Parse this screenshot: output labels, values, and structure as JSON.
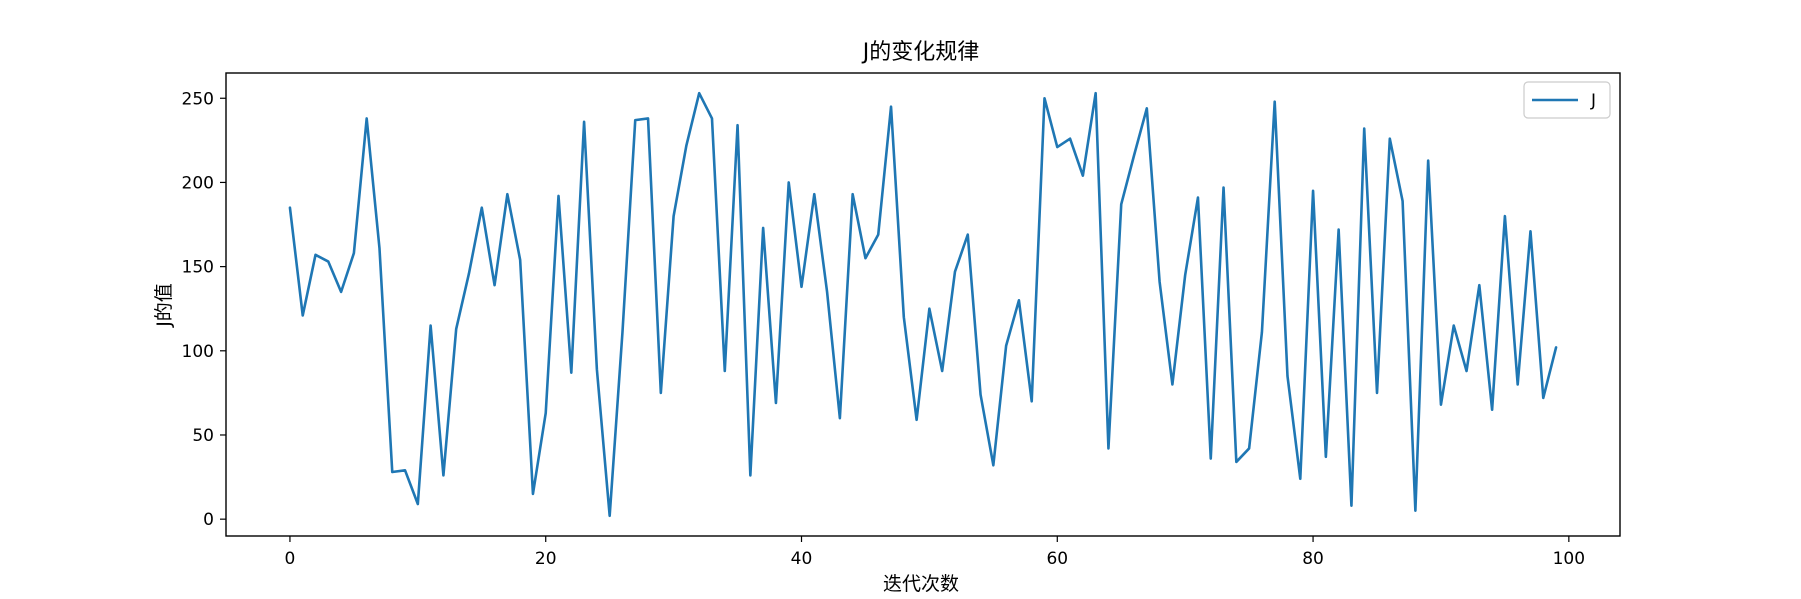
{
  "chart_data": {
    "type": "line",
    "title": "J的变化规律",
    "xlabel": "迭代次数",
    "ylabel": "J的值",
    "xlim": [
      -5,
      104
    ],
    "ylim": [
      -10,
      265
    ],
    "xticks": [
      0,
      20,
      40,
      60,
      80,
      100
    ],
    "yticks": [
      0,
      50,
      100,
      150,
      200,
      250
    ],
    "grid": false,
    "legend_position": "top-right",
    "series": [
      {
        "name": "J",
        "color": "#1f77b4",
        "x": [
          0,
          1,
          2,
          3,
          4,
          5,
          6,
          7,
          8,
          9,
          10,
          11,
          12,
          13,
          14,
          15,
          16,
          17,
          18,
          19,
          20,
          21,
          22,
          23,
          24,
          25,
          26,
          27,
          28,
          29,
          30,
          31,
          32,
          33,
          34,
          35,
          36,
          37,
          38,
          39,
          40,
          41,
          42,
          43,
          44,
          45,
          46,
          47,
          48,
          49,
          50,
          51,
          52,
          53,
          54,
          55,
          56,
          57,
          58,
          59,
          60,
          61,
          62,
          63,
          64,
          65,
          66,
          67,
          68,
          69,
          70,
          71,
          72,
          73,
          74,
          75,
          76,
          77,
          78,
          79,
          80,
          81,
          82,
          83,
          84,
          85,
          86,
          87,
          88,
          89,
          90,
          91,
          92,
          93,
          94,
          95,
          96,
          97,
          98,
          99
        ],
        "y": [
          185,
          121,
          157,
          153,
          135,
          158,
          238,
          161,
          28,
          29,
          9,
          115,
          26,
          113,
          146,
          185,
          139,
          193,
          154,
          15,
          63,
          192,
          87,
          236,
          89,
          2,
          111,
          237,
          238,
          75,
          180,
          222,
          253,
          238,
          88,
          234,
          26,
          173,
          69,
          200,
          138,
          193,
          135,
          60,
          193,
          155,
          169,
          245,
          120,
          59,
          125,
          88,
          147,
          169,
          74,
          32,
          103,
          130,
          70,
          250,
          221,
          226,
          204,
          253,
          42,
          187,
          216,
          244,
          141,
          80,
          145,
          191,
          36,
          197,
          34,
          42,
          111,
          248,
          85,
          24,
          195,
          37,
          172,
          8,
          232,
          75,
          226,
          189,
          5,
          213,
          68,
          115,
          88,
          139,
          65,
          180,
          80,
          171,
          72,
          102
        ]
      }
    ]
  }
}
